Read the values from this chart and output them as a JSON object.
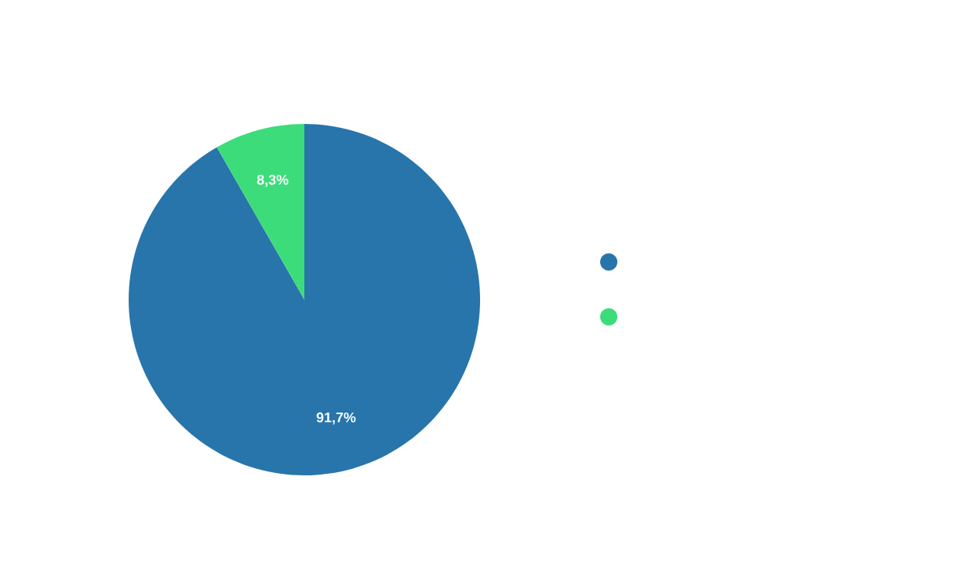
{
  "chart_data": {
    "type": "pie",
    "categories": [
      null,
      null
    ],
    "values": [
      91.7,
      8.3
    ],
    "colors": [
      "#2775ab",
      "#3ddc7a"
    ],
    "value_labels": [
      "91,7%",
      "8,3%"
    ]
  }
}
